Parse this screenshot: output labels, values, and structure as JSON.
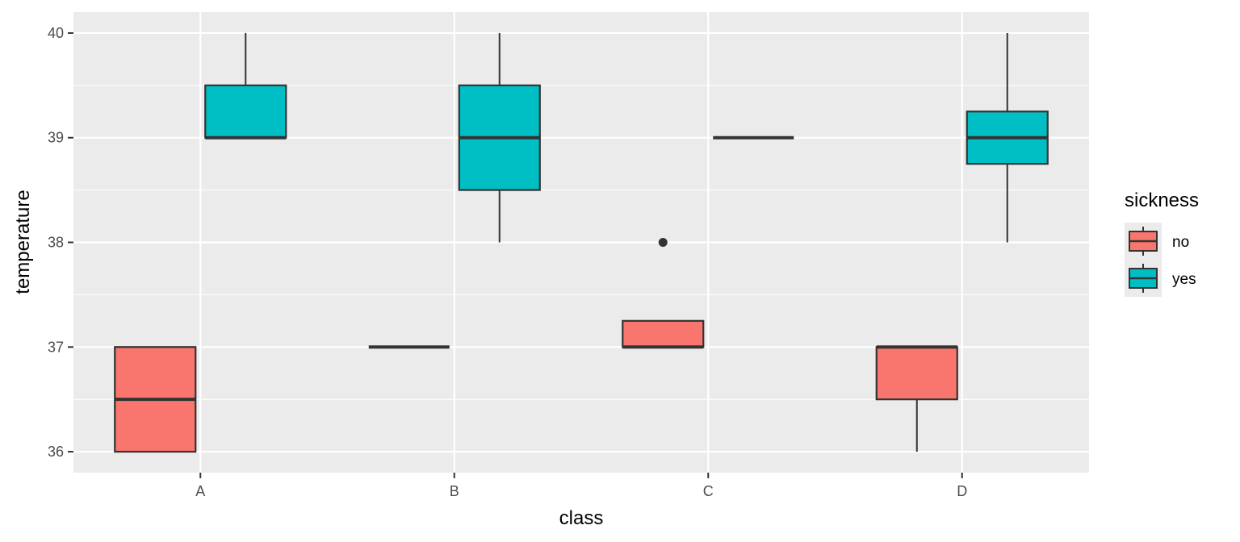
{
  "chart_data": {
    "type": "boxplot",
    "xlabel": "class",
    "ylabel": "temperature",
    "categories": [
      "A",
      "B",
      "C",
      "D"
    ],
    "ylim": [
      35.8,
      40.2
    ],
    "yticks": [
      36,
      37,
      38,
      39,
      40
    ],
    "grid": true,
    "legend": {
      "title": "sickness",
      "position": "right"
    },
    "series": [
      {
        "name": "no",
        "color": "#F8766D",
        "boxes": [
          {
            "category": "A",
            "min": 36,
            "q1": 36,
            "median": 36.5,
            "q3": 37,
            "max": 37,
            "outliers": []
          },
          {
            "category": "B",
            "min": 37,
            "q1": 37,
            "median": 37,
            "q3": 37,
            "max": 37,
            "outliers": []
          },
          {
            "category": "C",
            "min": 37,
            "q1": 37,
            "median": 37,
            "q3": 37.25,
            "max": 37.25,
            "outliers": [
              38
            ]
          },
          {
            "category": "D",
            "min": 36,
            "q1": 36.5,
            "median": 37,
            "q3": 37,
            "max": 37,
            "outliers": []
          }
        ]
      },
      {
        "name": "yes",
        "color": "#00BFC4",
        "boxes": [
          {
            "category": "A",
            "min": 39,
            "q1": 39,
            "median": 39,
            "q3": 39.5,
            "max": 40,
            "outliers": []
          },
          {
            "category": "B",
            "min": 38,
            "q1": 38.5,
            "median": 39,
            "q3": 39.5,
            "max": 40,
            "outliers": []
          },
          {
            "category": "C",
            "min": 39,
            "q1": 39,
            "median": 39,
            "q3": 39,
            "max": 39,
            "outliers": []
          },
          {
            "category": "D",
            "min": 38,
            "q1": 38.75,
            "median": 39,
            "q3": 39.25,
            "max": 40,
            "outliers": []
          }
        ]
      }
    ]
  }
}
